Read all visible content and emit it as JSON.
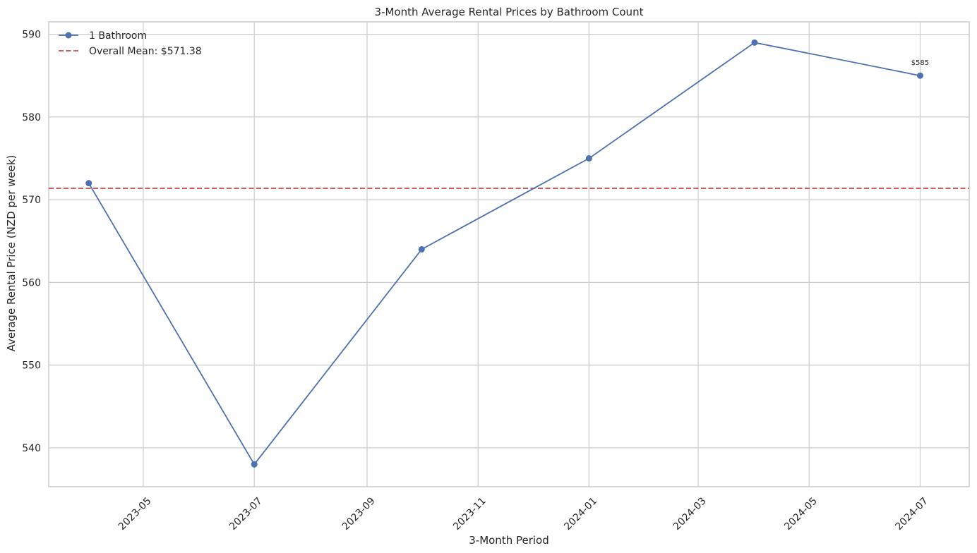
{
  "chart_data": {
    "type": "line",
    "title": "3-Month Average Rental Prices by Bathroom Count",
    "xlabel": "3-Month Period",
    "ylabel": "Average Rental Price (NZD per week)",
    "x_axis_type": "date",
    "x_ticks": [
      "2023-05",
      "2023-07",
      "2023-09",
      "2023-11",
      "2024-01",
      "2024-03",
      "2024-05",
      "2024-07"
    ],
    "xlim": [
      "2023-03-10",
      "2024-07-28"
    ],
    "y_ticks": [
      540,
      550,
      560,
      570,
      580,
      590
    ],
    "ylim": [
      535.3,
      591.5
    ],
    "grid": true,
    "legend_position": "top-left",
    "series": [
      {
        "name": "1 Bathroom",
        "color": "#4c72b0",
        "marker": "circle",
        "x": [
          "2023-04-01",
          "2023-07-01",
          "2023-10-01",
          "2024-01-01",
          "2024-04-01",
          "2024-07-01"
        ],
        "values": [
          572,
          538,
          564,
          575,
          589,
          585
        ]
      }
    ],
    "reference_lines": [
      {
        "name": "Overall Mean: $571.38",
        "value": 571.38,
        "color": "#c44e52",
        "style": "dashed"
      }
    ],
    "annotations": [
      {
        "x": "2024-07-01",
        "y": 585,
        "text": "$585"
      }
    ]
  }
}
